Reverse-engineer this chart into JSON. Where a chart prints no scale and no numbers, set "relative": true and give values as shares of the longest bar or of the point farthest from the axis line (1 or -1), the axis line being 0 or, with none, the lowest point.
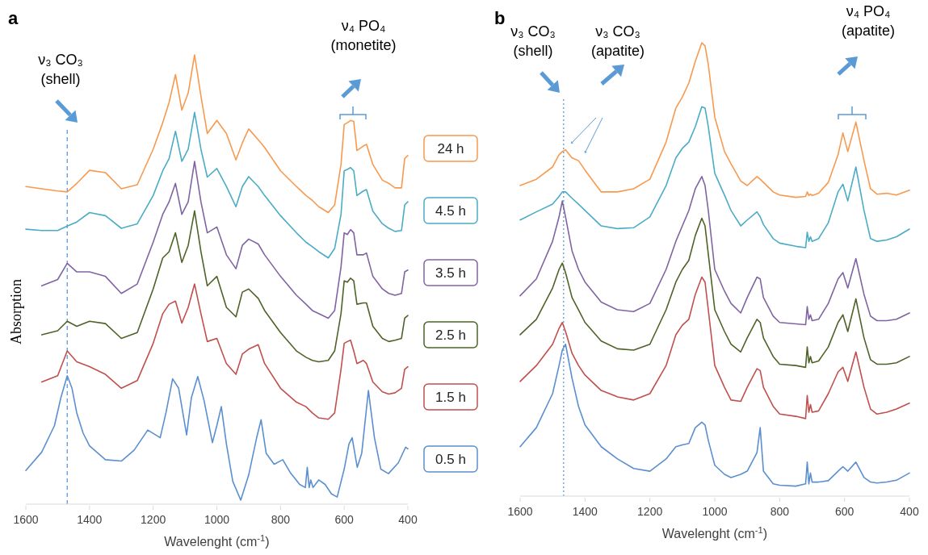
{
  "chart_data": [
    {
      "type": "line",
      "title": "a",
      "xlabel": "Wavelenght (cm$^{-1}$)",
      "ylabel": "Absorption",
      "relative": true,
      "xlim": [
        1600,
        400
      ],
      "xticks": [
        1600,
        1400,
        1200,
        1000,
        800,
        600,
        400
      ],
      "legend": "right",
      "x": [
        1600,
        1550,
        1500,
        1470,
        1440,
        1400,
        1350,
        1300,
        1250,
        1200,
        1170,
        1150,
        1130,
        1110,
        1090,
        1070,
        1050,
        1030,
        1000,
        970,
        940,
        920,
        900,
        870,
        850,
        800,
        750,
        720,
        700,
        680,
        650,
        630,
        610,
        600,
        590,
        580,
        570,
        560,
        540,
        530,
        510,
        480,
        460,
        440,
        420,
        410,
        400
      ],
      "series": [
        {
          "name": "24 h",
          "color": "#f79a4f",
          "values": [
            0.707,
            0.702,
            0.697,
            0.695,
            0.714,
            0.743,
            0.738,
            0.702,
            0.711,
            0.79,
            0.849,
            0.894,
            0.956,
            0.877,
            0.915,
            1.0,
            0.908,
            0.825,
            0.854,
            0.825,
            0.766,
            0.804,
            0.835,
            0.811,
            0.794,
            0.742,
            0.707,
            0.687,
            0.676,
            0.662,
            0.649,
            0.666,
            0.756,
            0.845,
            0.849,
            0.854,
            0.852,
            0.787,
            0.797,
            0.801,
            0.756,
            0.721,
            0.714,
            0.704,
            0.704,
            0.769,
            0.776
          ]
        },
        {
          "name": "4.5 h",
          "color": "#4bacc6",
          "values": [
            0.612,
            0.609,
            0.609,
            0.619,
            0.628,
            0.649,
            0.642,
            0.614,
            0.624,
            0.687,
            0.742,
            0.769,
            0.83,
            0.763,
            0.79,
            0.872,
            0.79,
            0.728,
            0.747,
            0.707,
            0.662,
            0.707,
            0.729,
            0.707,
            0.687,
            0.642,
            0.604,
            0.583,
            0.573,
            0.562,
            0.548,
            0.569,
            0.645,
            0.742,
            0.745,
            0.749,
            0.742,
            0.687,
            0.697,
            0.7,
            0.652,
            0.624,
            0.614,
            0.607,
            0.609,
            0.666,
            0.673
          ]
        },
        {
          "name": "3.5 h",
          "color": "#8064a2",
          "values": [
            null,
            0.486,
            0.5,
            0.536,
            0.517,
            0.517,
            0.507,
            0.469,
            0.49,
            0.583,
            0.645,
            0.673,
            0.714,
            0.645,
            0.673,
            0.763,
            0.673,
            0.604,
            0.617,
            0.555,
            0.524,
            0.576,
            0.59,
            0.579,
            0.555,
            0.507,
            0.465,
            0.445,
            0.431,
            0.424,
            0.414,
            0.431,
            0.528,
            0.604,
            0.6,
            0.611,
            0.604,
            0.555,
            0.555,
            0.559,
            0.507,
            0.479,
            0.469,
            0.465,
            0.469,
            0.517,
            0.521
          ]
        },
        {
          "name": "2.5 h",
          "color": "#4f6228",
          "values": [
            null,
            0.377,
            0.386,
            0.407,
            0.396,
            0.407,
            0.402,
            0.369,
            0.382,
            0.479,
            0.548,
            0.562,
            0.604,
            0.538,
            0.576,
            0.653,
            0.562,
            0.486,
            0.507,
            0.438,
            0.417,
            0.472,
            0.479,
            0.458,
            0.431,
            0.382,
            0.341,
            0.327,
            0.32,
            0.317,
            0.32,
            0.341,
            0.424,
            0.497,
            0.494,
            0.503,
            0.497,
            0.445,
            0.448,
            0.448,
            0.396,
            0.369,
            0.362,
            0.365,
            0.369,
            0.414,
            0.42
          ]
        },
        {
          "name": "1.5 h",
          "color": "#c0504d",
          "values": [
            null,
            0.272,
            0.286,
            0.341,
            0.317,
            0.306,
            0.289,
            0.258,
            0.275,
            0.358,
            0.424,
            0.445,
            0.452,
            0.403,
            0.438,
            0.49,
            0.424,
            0.362,
            0.369,
            0.313,
            0.289,
            0.334,
            0.345,
            0.355,
            0.313,
            0.258,
            0.227,
            0.217,
            0.203,
            0.192,
            0.189,
            0.203,
            0.3,
            0.358,
            0.362,
            0.365,
            0.341,
            0.313,
            0.32,
            0.313,
            0.272,
            0.25,
            0.245,
            0.248,
            0.258,
            0.3,
            0.306
          ]
        },
        {
          "name": "0.5 h",
          "color": "#5b8fd0",
          "x": [
            1600,
            1550,
            1510,
            1490,
            1470,
            1455,
            1440,
            1420,
            1400,
            1350,
            1300,
            1260,
            1217,
            1178,
            1160,
            1139,
            1120,
            1095,
            1080,
            1060,
            1040,
            1014,
            1000,
            986,
            970,
            950,
            925,
            900,
            875,
            861,
            845,
            820,
            793,
            770,
            740,
            722,
            716,
            710,
            705,
            698,
            680,
            660,
            640,
            622,
            600,
            585,
            575,
            559,
            545,
            524,
            505,
            485,
            461,
            430,
            407,
            400
          ],
          "values": [
            0.075,
            0.116,
            0.175,
            0.237,
            0.286,
            0.258,
            0.203,
            0.158,
            0.13,
            0.099,
            0.096,
            0.12,
            0.165,
            0.148,
            0.203,
            0.279,
            0.258,
            0.154,
            0.237,
            0.284,
            0.23,
            0.137,
            0.175,
            0.217,
            0.134,
            0.051,
            0.009,
            0.065,
            0.148,
            0.188,
            0.113,
            0.089,
            0.099,
            0.071,
            0.044,
            0.037,
            0.082,
            0.037,
            0.054,
            0.037,
            0.054,
            0.044,
            0.023,
            0.016,
            0.078,
            0.134,
            0.148,
            0.082,
            0.113,
            0.253,
            0.148,
            0.078,
            0.068,
            0.092,
            0.127,
            0.123
          ]
        }
      ],
      "ref_lines": [
        {
          "axis": "x",
          "value": 1470,
          "color": "#5b9bd5",
          "line_style": "dashed"
        }
      ],
      "annotations": [
        "ν₃ CO₃ (shell)",
        "ν₄ PO₄ (monetite)"
      ]
    },
    {
      "type": "line",
      "title": "b",
      "xlabel": "Wavelenght (cm$^{-1}$)",
      "relative": true,
      "xlim": [
        1600,
        400
      ],
      "xticks": [
        1600,
        1400,
        1200,
        1000,
        800,
        600,
        400
      ],
      "x": [
        1600,
        1550,
        1500,
        1480,
        1470,
        1460,
        1440,
        1420,
        1400,
        1350,
        1300,
        1250,
        1200,
        1150,
        1120,
        1100,
        1080,
        1060,
        1040,
        1030,
        1020,
        1000,
        970,
        950,
        920,
        900,
        870,
        860,
        850,
        820,
        800,
        750,
        720,
        715,
        710,
        705,
        700,
        680,
        650,
        620,
        605,
        590,
        565,
        540,
        520,
        500,
        470,
        440,
        400
      ],
      "series": [
        {
          "color": "#f79a4f",
          "values": [
            0.685,
            0.699,
            0.726,
            0.753,
            0.76,
            0.764,
            0.746,
            0.74,
            0.719,
            0.671,
            0.671,
            0.678,
            0.699,
            0.781,
            0.856,
            0.88,
            0.911,
            0.959,
            1.0,
            0.993,
            0.952,
            0.836,
            0.76,
            0.733,
            0.695,
            0.685,
            0.705,
            0.699,
            0.692,
            0.671,
            0.664,
            0.659,
            0.661,
            0.671,
            0.663,
            0.666,
            0.663,
            0.668,
            0.692,
            0.753,
            0.801,
            0.76,
            0.825,
            0.74,
            0.678,
            0.666,
            0.668,
            0.664,
            0.675
          ]
        },
        {
          "color": "#4bacc6",
          "values": [
            0.609,
            0.627,
            0.644,
            0.661,
            0.671,
            0.671,
            0.657,
            0.644,
            0.63,
            0.596,
            0.59,
            0.592,
            0.616,
            0.685,
            0.746,
            0.767,
            0.781,
            0.815,
            0.859,
            0.856,
            0.815,
            0.712,
            0.664,
            0.63,
            0.596,
            0.609,
            0.627,
            0.616,
            0.599,
            0.568,
            0.558,
            0.551,
            0.548,
            0.582,
            0.562,
            0.572,
            0.562,
            0.568,
            0.603,
            0.671,
            0.688,
            0.651,
            0.726,
            0.63,
            0.568,
            0.562,
            0.565,
            0.572,
            0.589
          ]
        },
        {
          "color": "#8064a2",
          "values": [
            0.442,
            0.479,
            0.562,
            0.616,
            0.651,
            0.616,
            0.541,
            0.5,
            0.472,
            0.428,
            0.411,
            0.407,
            0.425,
            0.5,
            0.562,
            0.596,
            0.63,
            0.678,
            0.705,
            0.685,
            0.63,
            0.5,
            0.452,
            0.425,
            0.404,
            0.438,
            0.483,
            0.479,
            0.438,
            0.397,
            0.383,
            0.38,
            0.378,
            0.418,
            0.39,
            0.4,
            0.387,
            0.39,
            0.425,
            0.479,
            0.493,
            0.459,
            0.524,
            0.445,
            0.397,
            0.387,
            0.387,
            0.39,
            0.404
          ]
        },
        {
          "color": "#4f6228",
          "values": [
            0.356,
            0.39,
            0.459,
            0.5,
            0.514,
            0.493,
            0.438,
            0.411,
            0.383,
            0.342,
            0.325,
            0.322,
            0.335,
            0.411,
            0.472,
            0.5,
            0.52,
            0.575,
            0.613,
            0.596,
            0.534,
            0.411,
            0.363,
            0.335,
            0.318,
            0.349,
            0.39,
            0.383,
            0.349,
            0.308,
            0.291,
            0.288,
            0.284,
            0.329,
            0.294,
            0.308,
            0.294,
            0.298,
            0.329,
            0.383,
            0.4,
            0.363,
            0.435,
            0.349,
            0.301,
            0.291,
            0.291,
            0.294,
            0.308
          ]
        },
        {
          "color": "#c0504d",
          "values": [
            0.253,
            0.288,
            0.335,
            0.37,
            0.383,
            0.363,
            0.315,
            0.288,
            0.267,
            0.233,
            0.219,
            0.212,
            0.226,
            0.288,
            0.356,
            0.377,
            0.39,
            0.445,
            0.483,
            0.472,
            0.411,
            0.288,
            0.24,
            0.212,
            0.209,
            0.24,
            0.281,
            0.277,
            0.24,
            0.198,
            0.181,
            0.176,
            0.171,
            0.222,
            0.185,
            0.202,
            0.185,
            0.188,
            0.226,
            0.274,
            0.284,
            0.253,
            0.318,
            0.24,
            0.192,
            0.181,
            0.185,
            0.192,
            0.205
          ]
        },
        {
          "color": "#5b8fd0",
          "values": [
            0.109,
            0.151,
            0.226,
            0.288,
            0.322,
            0.335,
            0.26,
            0.198,
            0.157,
            0.109,
            0.082,
            0.061,
            0.055,
            0.082,
            0.109,
            0.113,
            0.116,
            0.151,
            0.163,
            0.157,
            0.123,
            0.068,
            0.048,
            0.041,
            0.048,
            0.055,
            0.096,
            0.151,
            0.055,
            0.027,
            0.024,
            0.022,
            0.027,
            0.075,
            0.027,
            0.051,
            0.031,
            0.031,
            0.034,
            0.055,
            0.065,
            0.055,
            0.075,
            0.041,
            0.031,
            0.029,
            0.031,
            0.035,
            0.051
          ]
        }
      ],
      "ref_lines": [
        {
          "axis": "x",
          "value": 1466,
          "color": "#5b9bd5",
          "line_style": "dotted"
        }
      ],
      "annotations": [
        "ν₃ CO₃ (shell)",
        "ν₃ CO₃ (apatite)",
        "ν₄ PO₄ (apatite)"
      ]
    }
  ]
}
